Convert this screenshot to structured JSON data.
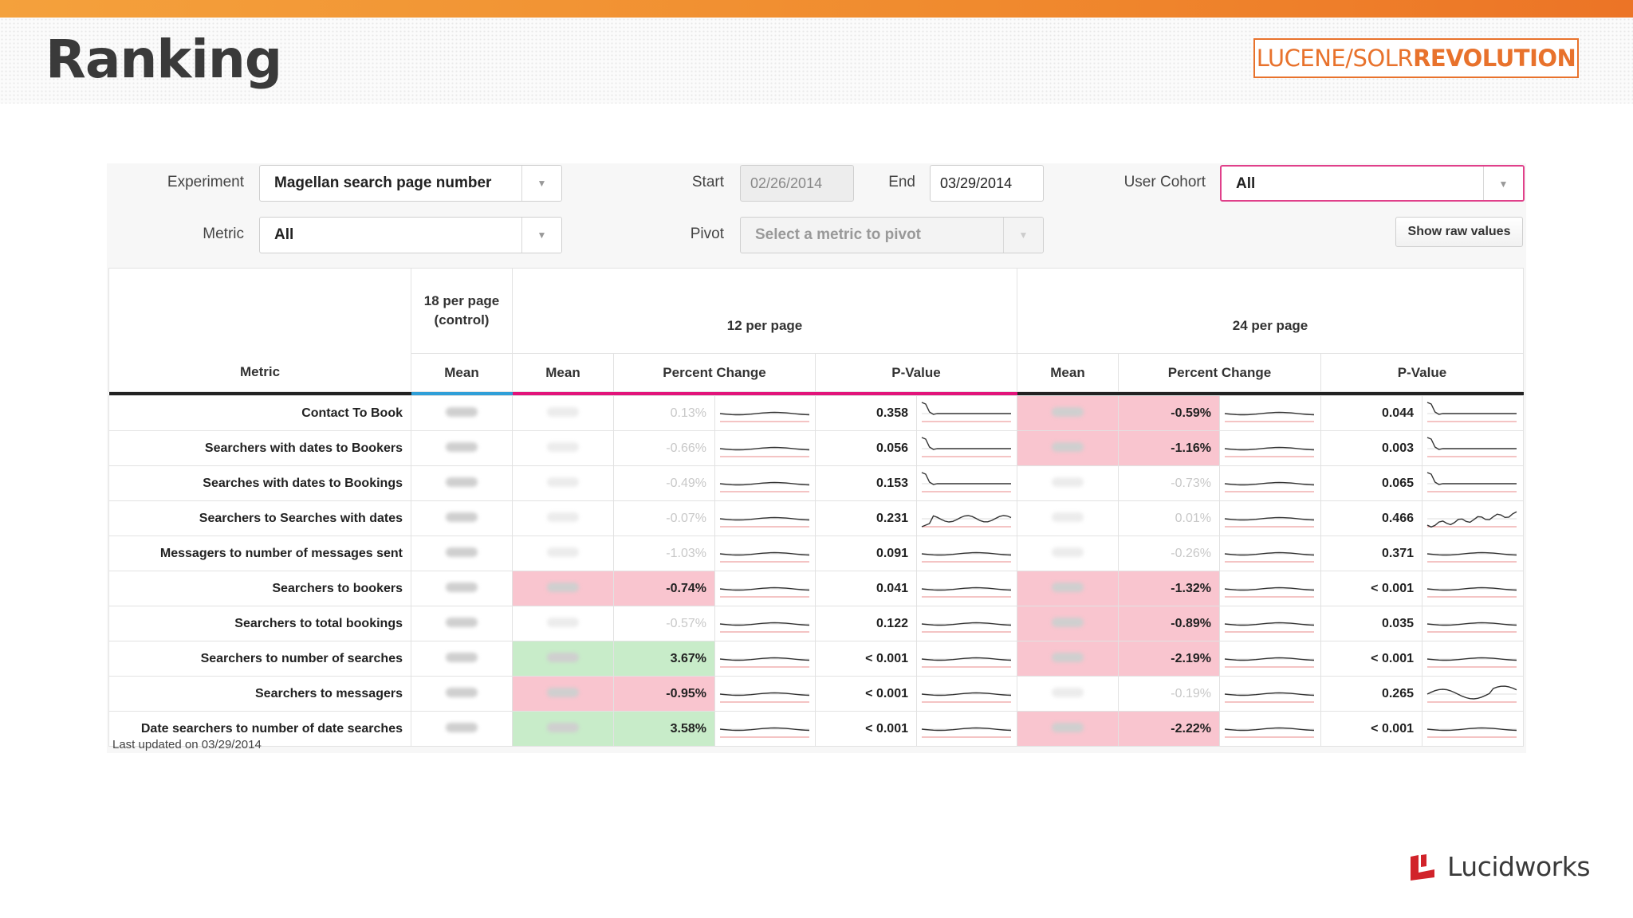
{
  "slide": {
    "title": "Ranking"
  },
  "branding": {
    "conference_part1": "LUCENE/SOLR",
    "conference_part2": "REVOLUTION",
    "company": "Lucidworks",
    "accent": "#e8722c"
  },
  "controls": {
    "experiment_label": "Experiment",
    "experiment_value": "Magellan search page number",
    "metric_label": "Metric",
    "metric_value": "All",
    "start_label": "Start",
    "start_value": "02/26/2014",
    "end_label": "End",
    "end_value": "03/29/2014",
    "pivot_label": "Pivot",
    "pivot_placeholder": "Select a metric to pivot",
    "cohort_label": "User Cohort",
    "cohort_value": "All",
    "raw_button": "Show raw values"
  },
  "table": {
    "metric_header": "Metric",
    "control_header": "18 per page (control)",
    "group1_header": "12 per page",
    "group2_header": "24 per page",
    "mean_header": "Mean",
    "pct_header": "Percent Change",
    "pval_header": "P-Value",
    "colors": {
      "control": "#2f9fd8",
      "g1": "#e2137a",
      "g2": "#222222",
      "pink": "#f9c5cf",
      "green": "#c8ecc9"
    },
    "rows": [
      {
        "metric": "Contact To Book",
        "g1": {
          "pct": "0.13%",
          "pval": "0.358",
          "sig": "none"
        },
        "g2": {
          "pct": "-0.59%",
          "pval": "0.044",
          "sig": "neg"
        }
      },
      {
        "metric": "Searchers with dates to Bookers",
        "g1": {
          "pct": "-0.66%",
          "pval": "0.056",
          "sig": "none"
        },
        "g2": {
          "pct": "-1.16%",
          "pval": "0.003",
          "sig": "neg"
        }
      },
      {
        "metric": "Searches with dates to Bookings",
        "g1": {
          "pct": "-0.49%",
          "pval": "0.153",
          "sig": "none"
        },
        "g2": {
          "pct": "-0.73%",
          "pval": "0.065",
          "sig": "none"
        }
      },
      {
        "metric": "Searchers to Searches with dates",
        "g1": {
          "pct": "-0.07%",
          "pval": "0.231",
          "sig": "none"
        },
        "g2": {
          "pct": "0.01%",
          "pval": "0.466",
          "sig": "none"
        }
      },
      {
        "metric": "Messagers to number of messages sent",
        "g1": {
          "pct": "-1.03%",
          "pval": "0.091",
          "sig": "none"
        },
        "g2": {
          "pct": "-0.26%",
          "pval": "0.371",
          "sig": "none"
        }
      },
      {
        "metric": "Searchers to bookers",
        "g1": {
          "pct": "-0.74%",
          "pval": "0.041",
          "sig": "neg"
        },
        "g2": {
          "pct": "-1.32%",
          "pval": "< 0.001",
          "sig": "neg"
        }
      },
      {
        "metric": "Searchers to total bookings",
        "g1": {
          "pct": "-0.57%",
          "pval": "0.122",
          "sig": "none"
        },
        "g2": {
          "pct": "-0.89%",
          "pval": "0.035",
          "sig": "neg"
        }
      },
      {
        "metric": "Searchers to number of searches",
        "g1": {
          "pct": "3.67%",
          "pval": "< 0.001",
          "sig": "pos"
        },
        "g2": {
          "pct": "-2.19%",
          "pval": "< 0.001",
          "sig": "neg"
        }
      },
      {
        "metric": "Searchers to messagers",
        "g1": {
          "pct": "-0.95%",
          "pval": "< 0.001",
          "sig": "neg"
        },
        "g2": {
          "pct": "-0.19%",
          "pval": "0.265",
          "sig": "none"
        }
      },
      {
        "metric": "Date searchers to number of date searches",
        "g1": {
          "pct": "3.58%",
          "pval": "< 0.001",
          "sig": "pos"
        },
        "g2": {
          "pct": "-2.22%",
          "pval": "< 0.001",
          "sig": "neg"
        }
      }
    ]
  },
  "footer": {
    "updated": "Last updated on 03/29/2014"
  }
}
